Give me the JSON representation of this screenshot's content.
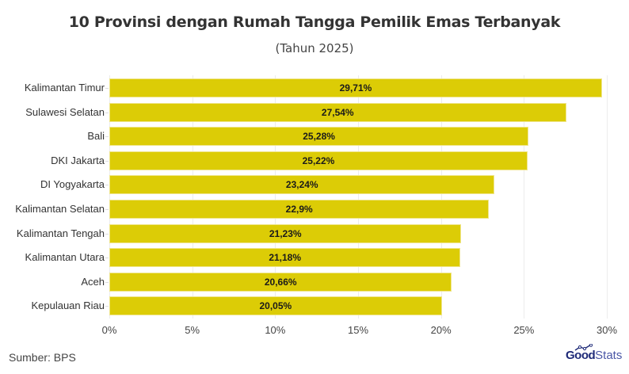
{
  "header": {
    "title": "10 Provinsi dengan Rumah Tangga Pemilik Emas Terbanyak",
    "subtitle": "(Tahun 2025)"
  },
  "footer": {
    "source": "Sumber: BPS",
    "logo_part1": "Good",
    "logo_part2": "Stats"
  },
  "colors": {
    "bar": "#DCCC06",
    "text": "#333333"
  },
  "chart_data": {
    "type": "bar",
    "orientation": "horizontal",
    "title": "10 Provinsi dengan Rumah Tangga Pemilik Emas Terbanyak",
    "subtitle": "(Tahun 2025)",
    "xlabel": "",
    "ylabel": "",
    "xlim": [
      0,
      30
    ],
    "x_ticks": [
      "0%",
      "5%",
      "10%",
      "15%",
      "20%",
      "25%",
      "30%"
    ],
    "grid": true,
    "legend": null,
    "categories": [
      "Kalimantan Timur",
      "Sulawesi Selatan",
      "Bali",
      "DKI Jakarta",
      "DI Yogyakarta",
      "Kalimantan Selatan",
      "Kalimantan Tengah",
      "Kalimantan Utara",
      "Aceh",
      "Kepulauan Riau"
    ],
    "values": [
      29.71,
      27.54,
      25.28,
      25.22,
      23.24,
      22.9,
      21.23,
      21.18,
      20.66,
      20.05
    ],
    "value_labels": [
      "29,71%",
      "27,54%",
      "25,28%",
      "25,22%",
      "23,24%",
      "22,9%",
      "21,23%",
      "21,18%",
      "20,66%",
      "20,05%"
    ],
    "source": "Sumber: BPS"
  }
}
